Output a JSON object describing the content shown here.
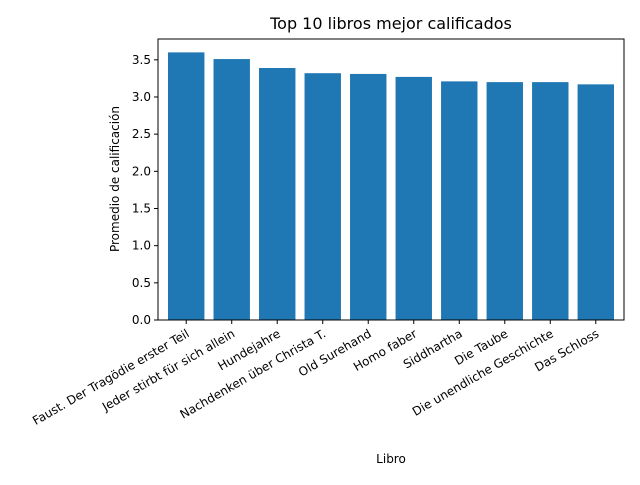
{
  "chart_data": {
    "type": "bar",
    "title": "Top 10 libros mejor calificados",
    "xlabel": "Libro",
    "ylabel": "Promedio de calificación",
    "categories": [
      "Faust. Der Tragödie erster Teil",
      "Jeder stirbt für sich allein",
      "Hundejahre",
      "Nachdenken über Christa T.",
      "Old Surehand",
      "Homo faber",
      "Siddhartha",
      "Die Taube",
      "Die unendliche Geschichte",
      "Das Schloss"
    ],
    "values": [
      3.6,
      3.51,
      3.39,
      3.32,
      3.31,
      3.27,
      3.21,
      3.2,
      3.2,
      3.17
    ],
    "ylim": [
      0,
      3.78
    ],
    "yticks": [
      "0.0",
      "0.5",
      "1.0",
      "1.5",
      "2.0",
      "2.5",
      "3.0",
      "3.5"
    ],
    "bar_color": "#1f77b4",
    "grid": false,
    "legend": "none"
  }
}
